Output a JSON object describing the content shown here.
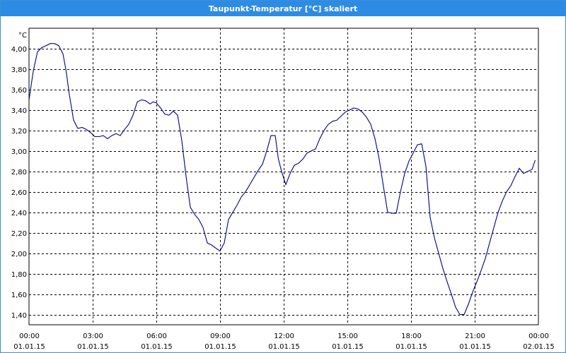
{
  "window": {
    "title": "Taupunkt-Temperatur [°C] skaliert"
  },
  "chart_data": {
    "type": "line",
    "title": "Taupunkt-Temperatur [°C] skaliert",
    "unit": "°C",
    "xlabel": "",
    "ylabel": "",
    "xlim": [
      0,
      24
    ],
    "ylim": [
      1.3,
      4.2
    ],
    "grid": true,
    "line_color": "#00008b",
    "y_ticks": [
      "1,40",
      "1,60",
      "1,80",
      "2,00",
      "2,20",
      "2,40",
      "2,60",
      "2,80",
      "3,00",
      "3,20",
      "3,40",
      "3,60",
      "3,80",
      "4,00"
    ],
    "y_tick_values": [
      1.4,
      1.6,
      1.8,
      2.0,
      2.2,
      2.4,
      2.6,
      2.8,
      3.0,
      3.2,
      3.4,
      3.6,
      3.8,
      4.0
    ],
    "x_ticks": [
      {
        "time": "00:00",
        "date": "01.01.15"
      },
      {
        "time": "03:00",
        "date": "01.01.15"
      },
      {
        "time": "06:00",
        "date": "01.01.15"
      },
      {
        "time": "09:00",
        "date": "01.01.15"
      },
      {
        "time": "12:00",
        "date": "01.01.15"
      },
      {
        "time": "15:00",
        "date": "01.01.15"
      },
      {
        "time": "18:00",
        "date": "01.01.15"
      },
      {
        "time": "21:00",
        "date": "01.01.15"
      },
      {
        "time": "00:00",
        "date": "02.01.15"
      }
    ],
    "x_tick_values": [
      0,
      3,
      6,
      9,
      12,
      15,
      18,
      21,
      24
    ],
    "series": [
      {
        "x": [
          0,
          0.2,
          0.4,
          0.6,
          0.8,
          1.0,
          1.2,
          1.4,
          1.6,
          1.75,
          1.9,
          2.1,
          2.3,
          2.5,
          2.7,
          2.9,
          3.1,
          3.3,
          3.5,
          3.7,
          3.9,
          4.1,
          4.3,
          4.5,
          4.7,
          4.9,
          5.1,
          5.3,
          5.5,
          5.7,
          5.85,
          6.0,
          6.2,
          6.4,
          6.6,
          6.8,
          7.0,
          7.2,
          7.4,
          7.6,
          7.8,
          8.0,
          8.2,
          8.4,
          8.6,
          8.8,
          9.0,
          9.2,
          9.4,
          9.6,
          9.8,
          10.0,
          10.2,
          10.4,
          10.6,
          10.8,
          11.0,
          11.2,
          11.4,
          11.6,
          11.75,
          11.9,
          12.1,
          12.3,
          12.5,
          12.7,
          12.9,
          13.1,
          13.3,
          13.5,
          13.7,
          13.9,
          14.1,
          14.3,
          14.5,
          14.7,
          14.9,
          15.1,
          15.3,
          15.5,
          15.7,
          15.9,
          16.1,
          16.3,
          16.5,
          16.7,
          16.9,
          17.1,
          17.3,
          17.5,
          17.7,
          17.9,
          18.1,
          18.3,
          18.5,
          18.7,
          18.9,
          19.1,
          19.3,
          19.5,
          19.7,
          19.9,
          20.1,
          20.3,
          20.5,
          20.7,
          20.9,
          21.1,
          21.3,
          21.5,
          21.7,
          21.9,
          22.1,
          22.3,
          22.5,
          22.7,
          22.9,
          23.1,
          23.3,
          23.5,
          23.7,
          23.85
        ],
        "y": [
          3.5,
          3.78,
          3.97,
          4.01,
          4.03,
          4.05,
          4.05,
          4.03,
          3.95,
          3.78,
          3.55,
          3.3,
          3.22,
          3.23,
          3.21,
          3.18,
          3.14,
          3.14,
          3.15,
          3.12,
          3.15,
          3.17,
          3.15,
          3.21,
          3.26,
          3.35,
          3.48,
          3.5,
          3.49,
          3.46,
          3.48,
          3.47,
          3.42,
          3.36,
          3.35,
          3.39,
          3.35,
          3.1,
          2.75,
          2.45,
          2.38,
          2.33,
          2.25,
          2.1,
          2.08,
          2.05,
          2.02,
          2.1,
          2.33,
          2.4,
          2.47,
          2.55,
          2.6,
          2.67,
          2.74,
          2.81,
          2.87,
          3.0,
          3.15,
          3.15,
          2.92,
          2.8,
          2.67,
          2.78,
          2.86,
          2.88,
          2.92,
          2.98,
          3.0,
          3.02,
          3.12,
          3.2,
          3.26,
          3.29,
          3.3,
          3.34,
          3.38,
          3.4,
          3.42,
          3.41,
          3.38,
          3.33,
          3.26,
          3.12,
          2.92,
          2.65,
          2.4,
          2.39,
          2.39,
          2.6,
          2.78,
          2.9,
          2.98,
          3.06,
          3.07,
          2.85,
          2.35,
          2.15,
          2.0,
          1.85,
          1.72,
          1.6,
          1.47,
          1.4,
          1.4,
          1.5,
          1.62,
          1.72,
          1.83,
          1.95,
          2.1,
          2.25,
          2.4,
          2.51,
          2.6,
          2.66,
          2.75,
          2.83,
          2.78,
          2.8,
          2.82,
          2.91
        ]
      }
    ]
  }
}
